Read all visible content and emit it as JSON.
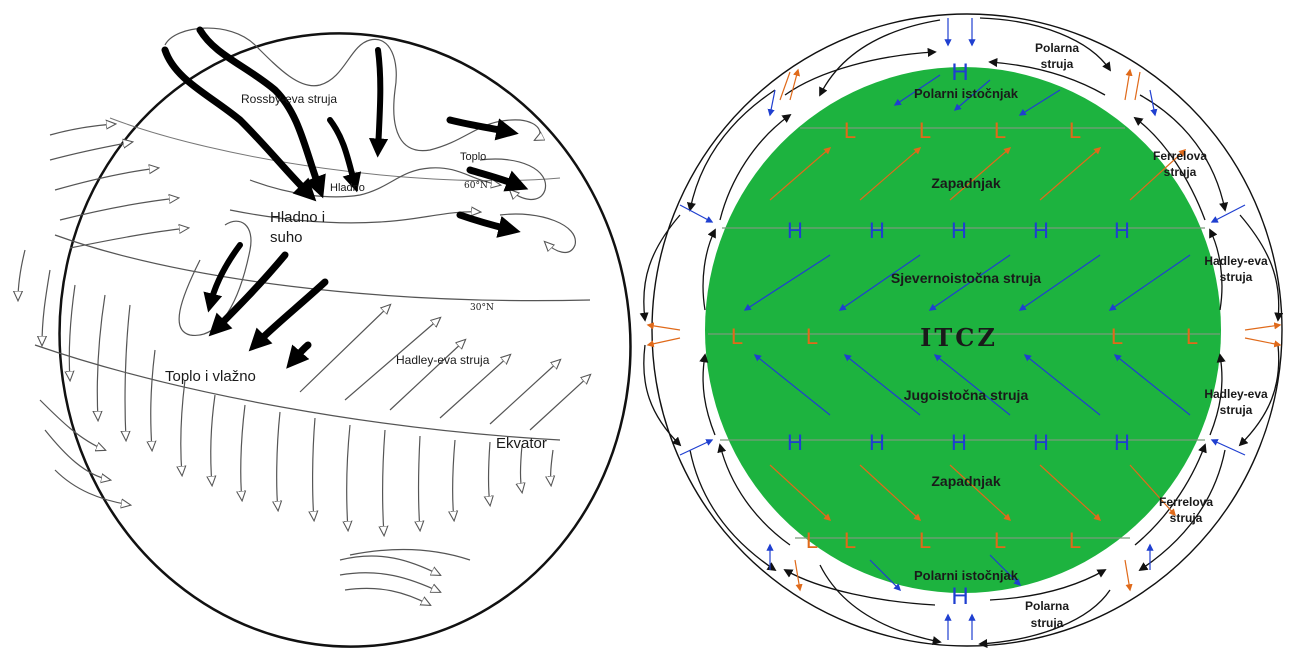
{
  "left_diagram": {
    "labels": {
      "rossby": "Rossby-eva struja",
      "toplo_top": "Toplo",
      "lat60": "60°N",
      "hladno": "Hladno",
      "hladno_suho_1": "Hladno i",
      "hladno_suho_2": "suho",
      "lat30": "30°N",
      "hadley": "Hadley-eva struja",
      "toplo_vlazno": "Toplo i vlažno",
      "ekvator": "Ekvator"
    }
  },
  "right_diagram": {
    "colors": {
      "earth": "#1db33f",
      "blue": "#1f3fd0",
      "orange": "#e06a1a",
      "black": "#111111",
      "band": "#7a9a7a"
    },
    "labels": {
      "polarna_struja_top_1": "Polarna",
      "polarna_struja_top_2": "struja",
      "polarni_istocnjak_top": "Polarni istočnjak",
      "ferrelova_top_1": "Ferrelova",
      "ferrelova_top_2": "struja",
      "zapadnjak_top": "Zapadnjak",
      "hadley_top_1": "Hadley-eva",
      "hadley_top_2": "struja",
      "sjeveroistocna": "Sjevernoistočna struja",
      "itcz": "ITCZ",
      "hadley_bottom_1": "Hadley-eva",
      "hadley_bottom_2": "struja",
      "jugoistocna": "Jugoistočna struja",
      "zapadnjak_bottom": "Zapadnjak",
      "ferrelova_bottom_1": "Ferrelova",
      "ferrelova_bottom_2": "struja",
      "polarni_istocnjak_bottom": "Polarni istočnjak",
      "polarna_struja_bottom_1": "Polarna",
      "polarna_struja_bottom_2": "struja"
    },
    "pressure_labels": {
      "pole_north": "H",
      "lat60n": [
        "L",
        "L",
        "L",
        "L"
      ],
      "lat30n": [
        "H",
        "H",
        "H",
        "H",
        "H"
      ],
      "equator": [
        "L",
        "L",
        "L",
        "L"
      ],
      "lat30s": [
        "H",
        "H",
        "H",
        "H",
        "H"
      ],
      "lat60s": [
        "L",
        "L",
        "L",
        "L",
        "L"
      ],
      "pole_south": "H"
    }
  }
}
